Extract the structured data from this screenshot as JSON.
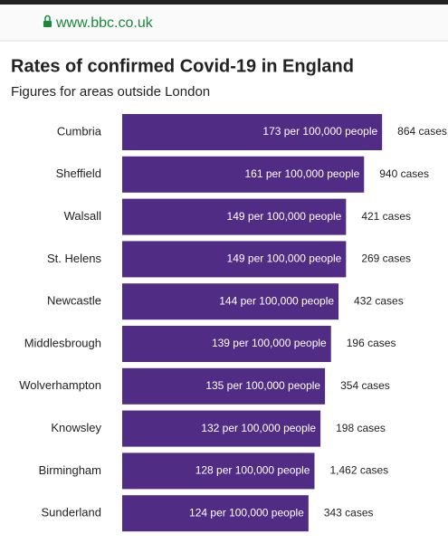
{
  "header": {
    "url": "www.bbc.co.uk"
  },
  "chart_data": {
    "type": "bar",
    "orientation": "horizontal",
    "title": "Rates of confirmed Covid-19 in England",
    "subtitle": "Figures for areas outside London",
    "categories": [
      "Cumbria",
      "Sheffield",
      "Walsall",
      "St. Helens",
      "Newcastle",
      "Middlesbrough",
      "Wolverhampton",
      "Knowsley",
      "Birmingham",
      "Sunderland"
    ],
    "values": [
      173,
      161,
      149,
      149,
      144,
      139,
      135,
      132,
      128,
      124
    ],
    "value_labels": [
      "173 per 100,000 people",
      "161 per 100,000 people",
      "149 per 100,000 people",
      "149 per 100,000 people",
      "144 per 100,000 people",
      "139 per 100,000 people",
      "135 per 100,000 people",
      "132 per 100,000 people",
      "128 per 100,000 people",
      "124 per 100,000 people"
    ],
    "case_labels": [
      "864 cases",
      "940 cases",
      "421 cases",
      "269 cases",
      "432 cases",
      "196 cases",
      "354 cases",
      "198 cases",
      "1,462 cases",
      "343 cases"
    ],
    "color": "#512c85"
  }
}
